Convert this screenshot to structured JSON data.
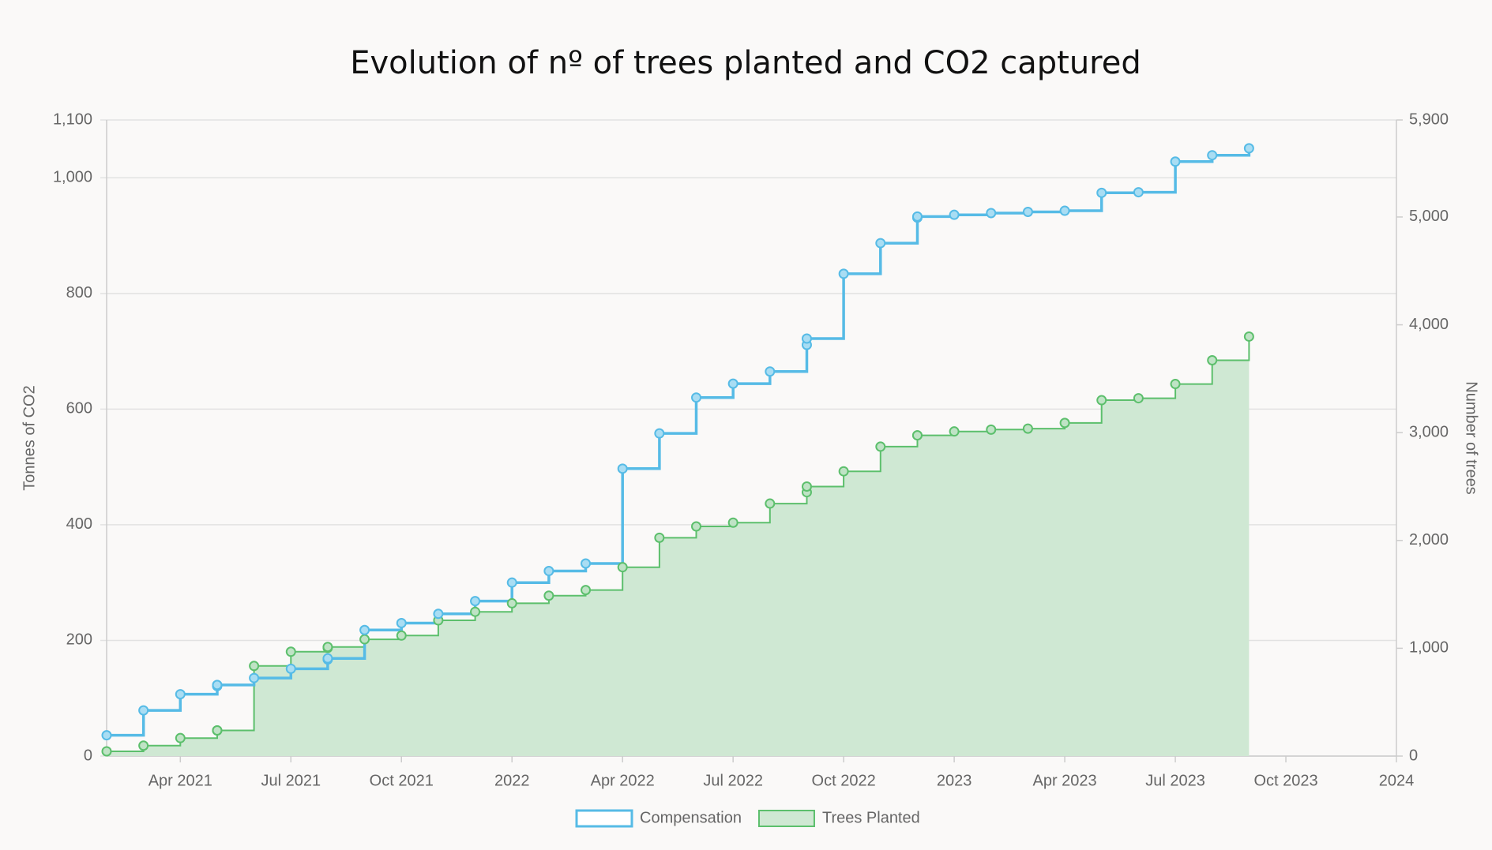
{
  "chart_data": {
    "type": "step",
    "title": "Evolution of nº of trees planted and CO2 captured",
    "x": [
      "2021-02",
      "2021-03",
      "2021-04",
      "2021-05",
      "2021-05",
      "2021-06",
      "2021-07",
      "2021-08",
      "2021-08",
      "2021-09",
      "2021-10",
      "2021-11",
      "2021-12",
      "2022-01",
      "2022-02",
      "2022-03",
      "2022-04",
      "2022-05",
      "2022-06",
      "2022-07",
      "2022-08",
      "2022-09",
      "2022-09",
      "2022-10",
      "2022-11",
      "2022-12",
      "2022-12",
      "2023-01",
      "2023-02",
      "2023-03",
      "2023-04",
      "2023-05",
      "2023-06",
      "2023-07",
      "2023-08",
      "2023-09"
    ],
    "xlim": [
      "2021-02",
      "2024-01"
    ],
    "xticks": [
      {
        "value": "2021-04",
        "label": "Apr 2021"
      },
      {
        "value": "2021-07",
        "label": "Jul 2021"
      },
      {
        "value": "2021-10",
        "label": "Oct 2021"
      },
      {
        "value": "2022-01",
        "label": "2022"
      },
      {
        "value": "2022-04",
        "label": "Apr 2022"
      },
      {
        "value": "2022-07",
        "label": "Jul 2022"
      },
      {
        "value": "2022-10",
        "label": "Oct 2022"
      },
      {
        "value": "2023-01",
        "label": "2023"
      },
      {
        "value": "2023-04",
        "label": "Apr 2023"
      },
      {
        "value": "2023-07",
        "label": "Jul 2023"
      },
      {
        "value": "2023-10",
        "label": "Oct 2023"
      },
      {
        "value": "2024-01",
        "label": "2024"
      }
    ],
    "ylabel": "Tonnes of CO2",
    "y2label": "Number of trees",
    "ylim": [
      0,
      1100
    ],
    "yticks": [
      0,
      200,
      400,
      600,
      800,
      {
        "value": 1000,
        "label": "1,000"
      },
      {
        "value": 1100,
        "label": "1,100"
      }
    ],
    "y2lim": [
      0,
      5900
    ],
    "y2ticks": [
      0,
      {
        "value": 1000,
        "label": "1,000"
      },
      {
        "value": 2000,
        "label": "2,000"
      },
      {
        "value": 3000,
        "label": "3,000"
      },
      {
        "value": 4000,
        "label": "4,000"
      },
      {
        "value": 5000,
        "label": "5,000"
      },
      {
        "value": 5900,
        "label": "5,900"
      }
    ],
    "grid": true,
    "series": [
      {
        "name": "Compensation",
        "color": "#56bbe6",
        "point_color": "#a9ddf3",
        "fill": false,
        "values": [
          36,
          79,
          107,
          121,
          123,
          135,
          151,
          167,
          169,
          218,
          230,
          246,
          268,
          300,
          320,
          333,
          497,
          558,
          620,
          644,
          665,
          711,
          722,
          834,
          887,
          931,
          933,
          936,
          939,
          941,
          943,
          974,
          975,
          1028,
          1039,
          1051
        ]
      },
      {
        "name": "Trees Planted",
        "color": "#5cbf6c",
        "point_color": "#bfe3c5",
        "fill": true,
        "fill_color": "#cfe8d3",
        "axis": "y2",
        "values": [
          44,
          97,
          167,
          238,
          238,
          836,
          968,
          1004,
          1012,
          1083,
          1118,
          1259,
          1338,
          1417,
          1488,
          1540,
          1752,
          2025,
          2130,
          2165,
          2342,
          2447,
          2500,
          2641,
          2870,
          2975,
          2975,
          3011,
          3028,
          3037,
          3090,
          3301,
          3319,
          3451,
          3671,
          3891
        ]
      }
    ]
  }
}
